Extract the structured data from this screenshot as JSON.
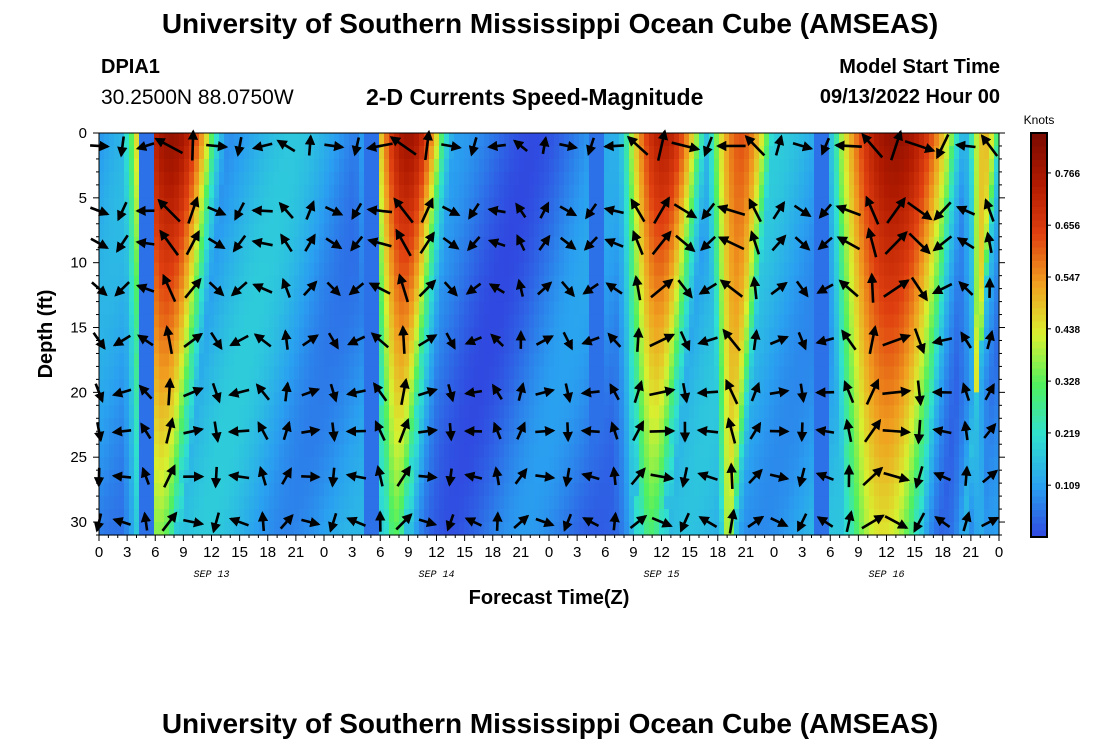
{
  "header": {
    "title": "University of Southern Mississippi Ocean Cube (AMSEAS)",
    "station": "DPIA1",
    "coords": "30.2500N  88.0750W",
    "subtitle": "2-D Currents Speed-Magnitude",
    "start_label": "Model Start Time",
    "start_value": "09/13/2022 Hour 00"
  },
  "footer": {
    "title_repeat": "University of Southern Mississippi Ocean Cube (AMSEAS)"
  },
  "chart_data": {
    "type": "heatmap",
    "title": "2-D Currents Speed-Magnitude",
    "xlabel": "Forecast Time(Z)",
    "ylabel": "Depth (ft)",
    "x_range_hours": [
      0,
      96
    ],
    "ylim": [
      0,
      31
    ],
    "x_tick_labels": [
      "0",
      "3",
      "6",
      "9",
      "12",
      "15",
      "18",
      "21",
      "0",
      "3",
      "6",
      "9",
      "12",
      "15",
      "18",
      "21",
      "0",
      "3",
      "6",
      "9",
      "12",
      "15",
      "18",
      "21",
      "0",
      "3",
      "6",
      "9",
      "12",
      "15",
      "18",
      "21",
      "0"
    ],
    "y_ticks": [
      0,
      5,
      10,
      15,
      20,
      25,
      30
    ],
    "day_labels": [
      {
        "label": "SEP 13",
        "hour": 12
      },
      {
        "label": "SEP 14",
        "hour": 36
      },
      {
        "label": "SEP 15",
        "hour": 60
      },
      {
        "label": "SEP 16",
        "hour": 84
      }
    ],
    "colorbar": {
      "title": "Knots",
      "ticks": [
        "0.766",
        "0.656",
        "0.547",
        "0.438",
        "0.328",
        "0.219",
        "0.109"
      ],
      "tick_values": [
        0.766,
        0.656,
        0.547,
        0.438,
        0.328,
        0.219,
        0.109
      ],
      "range": [
        0,
        0.85
      ],
      "colors": [
        "#3048e0",
        "#2aa0f0",
        "#30e0d0",
        "#50f060",
        "#d8f030",
        "#f0a020",
        "#e04010",
        "#b01a00",
        "#7a0a00"
      ]
    },
    "speed_bands": [
      {
        "center_hour": 7.5,
        "start_hour": 3.5,
        "end_hour": 12,
        "peak": 0.8,
        "depth_decay": 0.55
      },
      {
        "center_hour": 31.5,
        "start_hour": 29.5,
        "end_hour": 36.5,
        "peak": 0.78,
        "depth_decay": 0.6
      },
      {
        "center_hour": 56,
        "start_hour": 56.5,
        "end_hour": 64,
        "peak": 0.74,
        "depth_decay": 0.6
      },
      {
        "center_hour": 68,
        "start_hour": 65.5,
        "end_hour": 71.5,
        "peak": 0.62,
        "depth_decay": 0.35
      },
      {
        "center_hour": 81.5,
        "start_hour": 79,
        "end_hour": 91,
        "peak": 0.8,
        "depth_decay": 0.45
      },
      {
        "center_hour": 94.5,
        "start_hour": 93,
        "end_hour": 96,
        "peak": 0.5,
        "depth_decay": 0.2
      }
    ],
    "vector_x_step_hours": 2.5,
    "vector_depths_ft": [
      1,
      6,
      8.5,
      12,
      16,
      20,
      23,
      26.5,
      30
    ],
    "vector_phase_hours": 24.8
  }
}
